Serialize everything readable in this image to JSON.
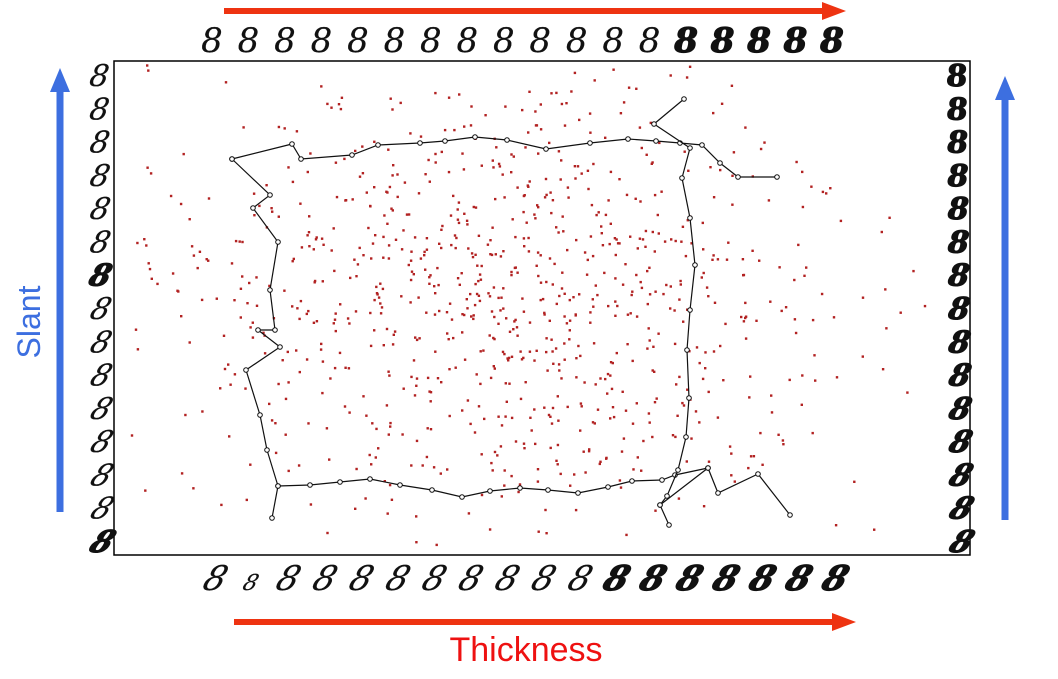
{
  "labels": {
    "horizontal_axis": "Thickness",
    "vertical_axis": "Slant"
  },
  "glyph": "8",
  "digit_rows": {
    "top_count": 18,
    "bottom_count": 18,
    "left_count": 15,
    "right_count": 15
  },
  "scatter": {
    "point_count": 900,
    "spread_x": 0.2,
    "spread_y": 0.24
  },
  "colors": {
    "horizontal_arrow": "#ee3311",
    "vertical_arrow": "#3d6fe0",
    "points": "#b22222",
    "curve": "#111111",
    "frame": "#000000",
    "digits": "#111111",
    "thickness_label": "#ee1111",
    "slant_label": "#3d6fe0"
  }
}
